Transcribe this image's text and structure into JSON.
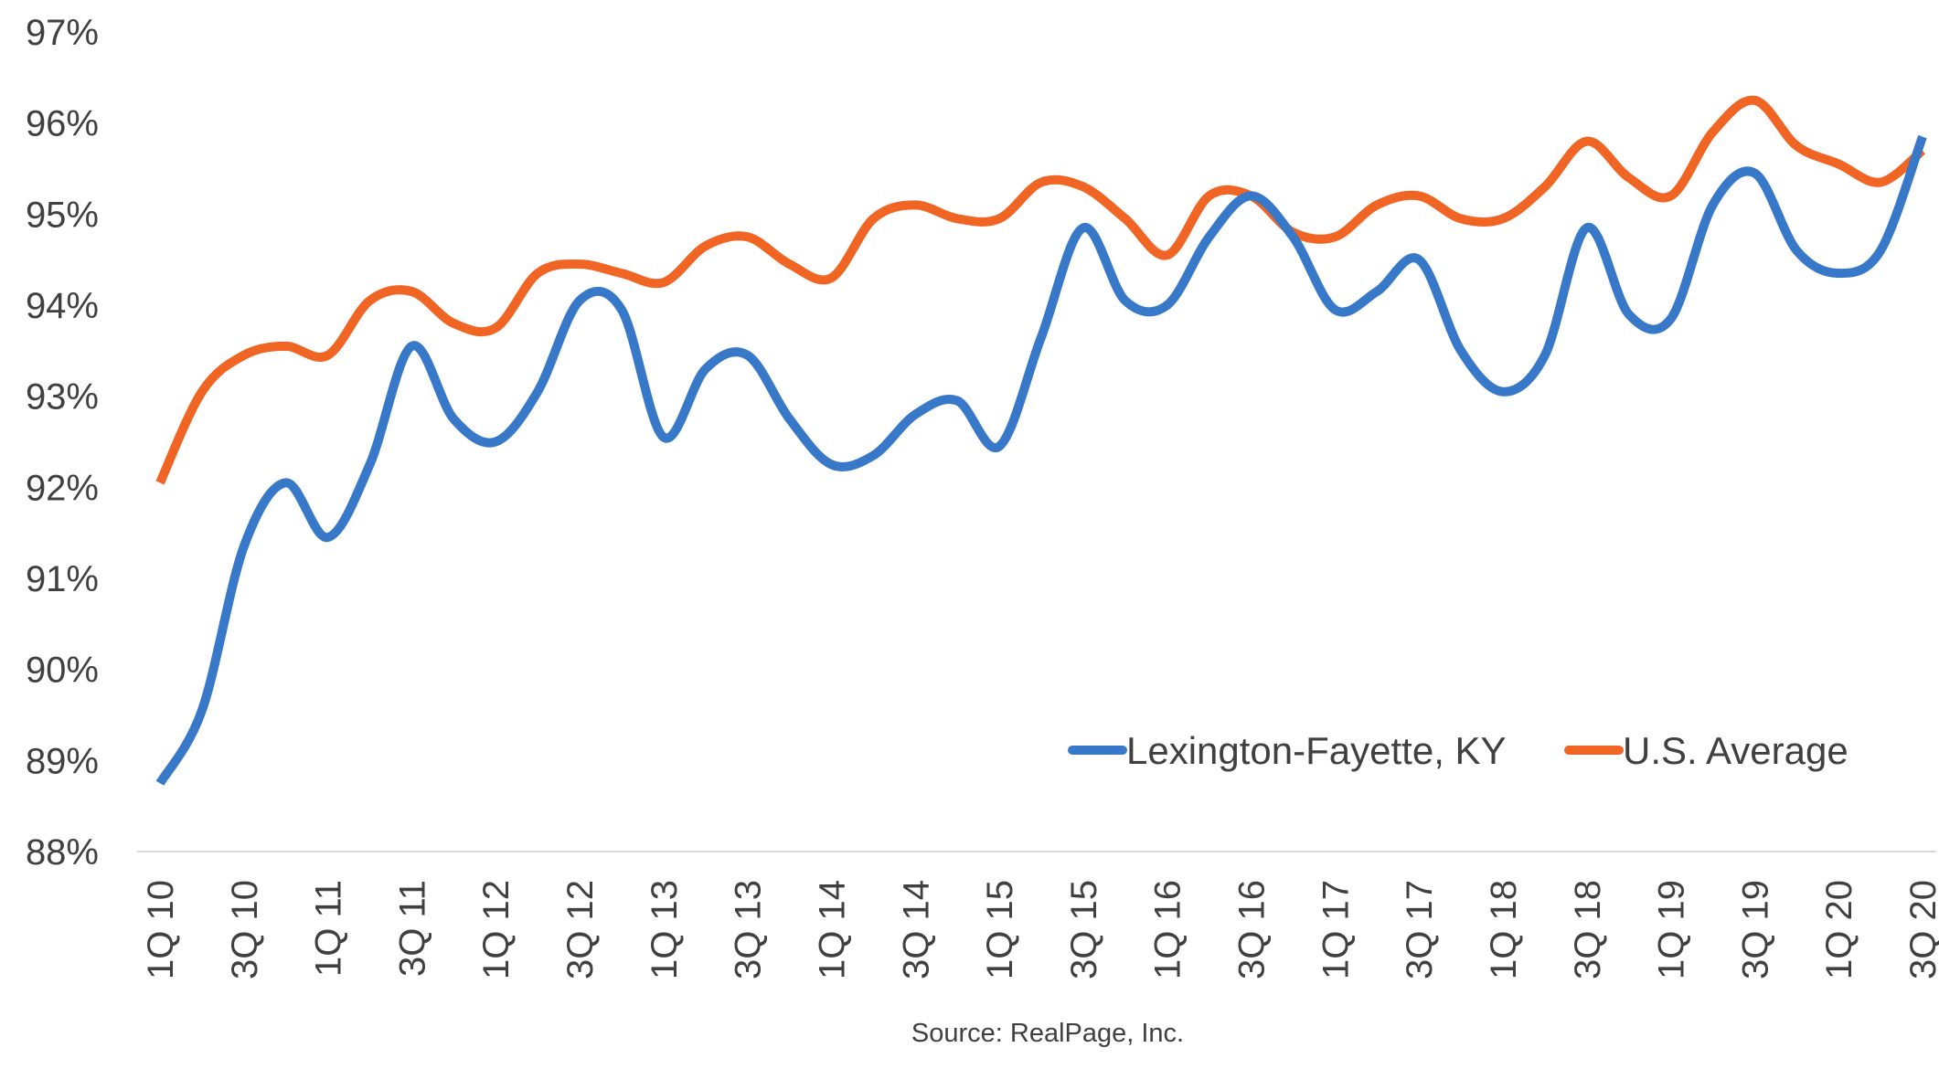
{
  "chart_data": {
    "type": "line",
    "title": "",
    "xlabel": "",
    "ylabel": "",
    "ylim": [
      88,
      97
    ],
    "yticks": [
      "88%",
      "89%",
      "90%",
      "91%",
      "92%",
      "93%",
      "94%",
      "95%",
      "96%",
      "97%"
    ],
    "x": [
      "1Q 10",
      "2Q 10",
      "3Q 10",
      "4Q 10",
      "1Q 11",
      "2Q 11",
      "3Q 11",
      "4Q 11",
      "1Q 12",
      "2Q 12",
      "3Q 12",
      "4Q 12",
      "1Q 13",
      "2Q 13",
      "3Q 13",
      "4Q 13",
      "1Q 14",
      "2Q 14",
      "3Q 14",
      "4Q 14",
      "1Q 15",
      "2Q 15",
      "3Q 15",
      "4Q 15",
      "1Q 16",
      "2Q 16",
      "3Q 16",
      "4Q 16",
      "1Q 17",
      "2Q 17",
      "3Q 17",
      "4Q 17",
      "1Q 18",
      "2Q 18",
      "3Q 18",
      "4Q 18",
      "1Q 19",
      "2Q 19",
      "3Q 19",
      "4Q 19",
      "1Q 20",
      "2Q 20",
      "3Q 20"
    ],
    "xtick_labels": [
      "1Q 10",
      "3Q 10",
      "1Q 11",
      "3Q 11",
      "1Q 12",
      "3Q 12",
      "1Q 13",
      "3Q 13",
      "1Q 14",
      "3Q 14",
      "1Q 15",
      "3Q 15",
      "1Q 16",
      "3Q 16",
      "1Q 17",
      "3Q 17",
      "1Q 18",
      "3Q 18",
      "1Q 19",
      "3Q 19",
      "1Q 20",
      "3Q 20"
    ],
    "grid": false,
    "legend_position": "bottom-right",
    "series": [
      {
        "name": "Lexington-Fayette, KY",
        "color": "#3878c8",
        "values": [
          88.75,
          89.55,
          91.35,
          92.05,
          91.45,
          92.25,
          93.55,
          92.75,
          92.5,
          93.05,
          94.05,
          93.95,
          92.55,
          93.3,
          93.45,
          92.75,
          92.25,
          92.35,
          92.8,
          92.95,
          92.45,
          93.65,
          94.85,
          94.05,
          94.0,
          94.75,
          95.2,
          94.75,
          93.95,
          94.15,
          94.5,
          93.5,
          93.05,
          93.45,
          94.85,
          93.9,
          93.85,
          95.1,
          95.45,
          94.6,
          94.35,
          94.6,
          95.85
        ]
      },
      {
        "name": "U.S. Average",
        "color": "#f06424",
        "values": [
          92.05,
          93.05,
          93.45,
          93.55,
          93.45,
          94.05,
          94.15,
          93.8,
          93.75,
          94.35,
          94.45,
          94.35,
          94.25,
          94.65,
          94.75,
          94.45,
          94.3,
          94.95,
          95.1,
          94.95,
          94.95,
          95.35,
          95.3,
          94.95,
          94.55,
          95.2,
          95.2,
          94.8,
          94.75,
          95.1,
          95.2,
          94.95,
          94.95,
          95.3,
          95.8,
          95.4,
          95.2,
          95.9,
          96.25,
          95.75,
          95.55,
          95.35,
          95.7
        ]
      }
    ],
    "source": "Source: RealPage, Inc."
  }
}
